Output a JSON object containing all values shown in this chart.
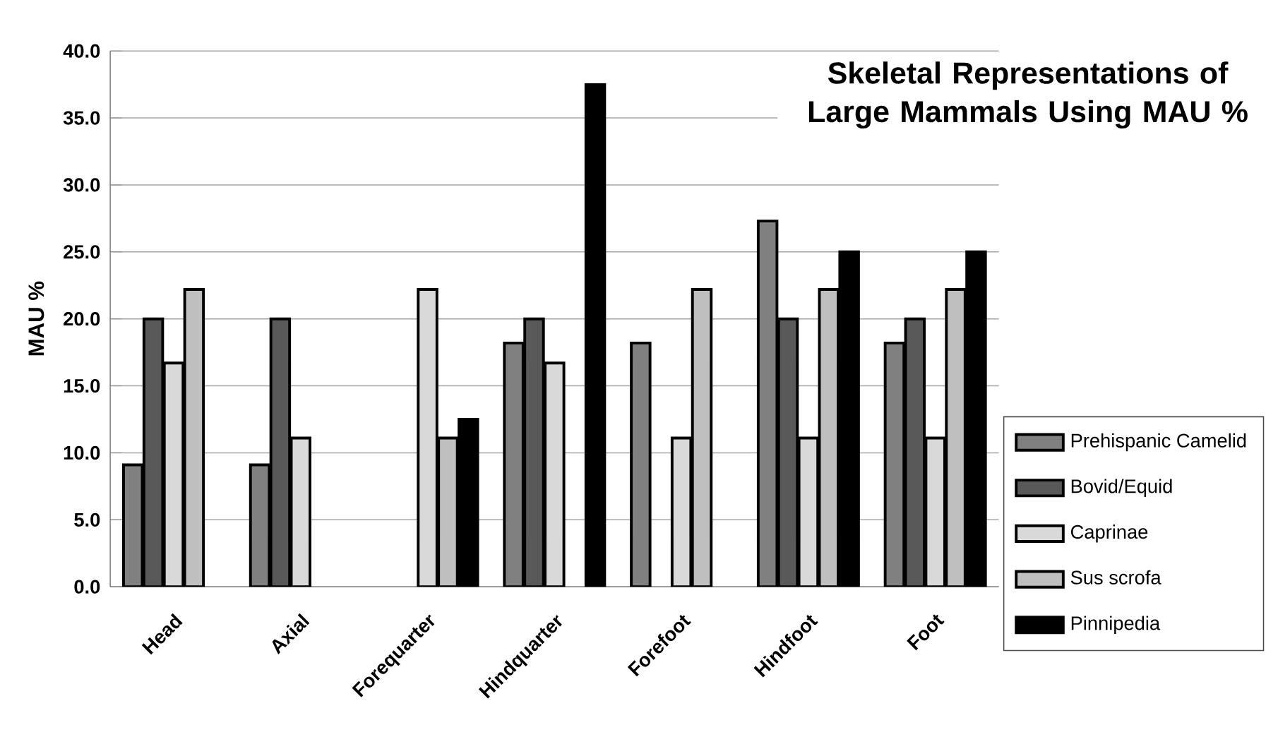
{
  "chart_data": {
    "type": "bar",
    "title": "Skeletal Representations of Large Mammals Using MAU %",
    "ylabel": "MAU %",
    "categories": [
      "Head",
      "Axial",
      "Forequarter",
      "Hindquarter",
      "Forefoot",
      "Hindfoot",
      "Foot"
    ],
    "series": [
      {
        "name": "Prehispanic Camelid",
        "color": "#808080",
        "values": [
          9.1,
          9.1,
          null,
          18.2,
          18.2,
          27.3,
          18.2
        ]
      },
      {
        "name": "Bovid/Equid",
        "color": "#595959",
        "values": [
          20.0,
          20.0,
          null,
          20.0,
          null,
          20.0,
          20.0
        ]
      },
      {
        "name": "Caprinae",
        "color": "#d9d9d9",
        "values": [
          16.7,
          11.1,
          22.2,
          16.7,
          11.1,
          11.1,
          11.1
        ]
      },
      {
        "name": "Sus scrofa",
        "color": "#bfbfbf",
        "values": [
          22.2,
          null,
          11.1,
          null,
          22.2,
          22.2,
          22.2
        ]
      },
      {
        "name": "Pinnipedia",
        "color": "#000000",
        "values": [
          null,
          null,
          12.5,
          37.5,
          null,
          25.0,
          25.0
        ]
      }
    ],
    "ylim": [
      0,
      40
    ],
    "yticks": [
      {
        "value": 0,
        "label": "0.0"
      },
      {
        "value": 5,
        "label": "5.0"
      },
      {
        "value": 10,
        "label": "10.0"
      },
      {
        "value": 15,
        "label": "15.0"
      },
      {
        "value": 20,
        "label": "20.0"
      },
      {
        "value": 25,
        "label": "25.0"
      },
      {
        "value": 30,
        "label": "30.0"
      },
      {
        "value": 35,
        "label": "35.0"
      },
      {
        "value": 40,
        "label": "40.0"
      }
    ],
    "grid": "y",
    "legend": "right"
  }
}
